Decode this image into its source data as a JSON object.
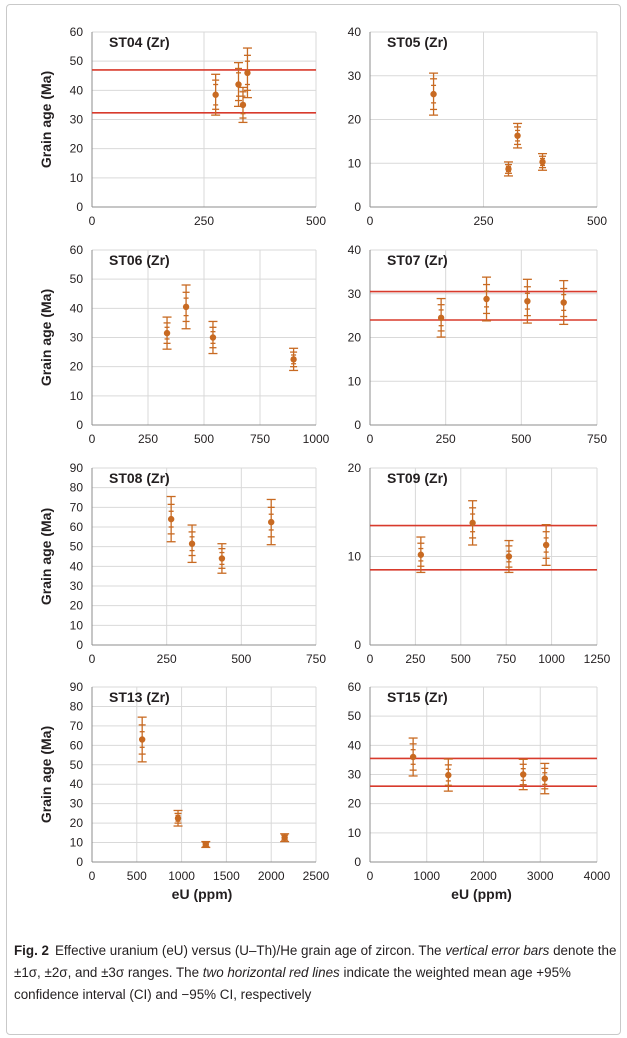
{
  "y_axis_label": "Grain age (Ma)",
  "x_axis_label": "eU (ppm)",
  "chart_data": [
    {
      "type": "scatter",
      "title": "ST04 (Zr)",
      "xlim": [
        0,
        500
      ],
      "xticks": [
        0,
        250,
        500
      ],
      "ylim": [
        0,
        60
      ],
      "yticks": [
        0,
        10,
        20,
        30,
        40,
        50,
        60
      ],
      "points": [
        {
          "x": 276,
          "y": 38.5,
          "err1": 3.5,
          "err2": 5,
          "err3": 7
        },
        {
          "x": 327,
          "y": 42,
          "err1": 4,
          "err2": 5.5,
          "err3": 7.5
        },
        {
          "x": 337,
          "y": 35,
          "err1": 3,
          "err2": 4.5,
          "err3": 6
        },
        {
          "x": 347,
          "y": 46,
          "err1": 4,
          "err2": 6,
          "err3": 8.5
        }
      ],
      "hlines": [
        47,
        32.3
      ]
    },
    {
      "type": "scatter",
      "title": "ST05 (Zr)",
      "xlim": [
        0,
        500
      ],
      "xticks": [
        0,
        250,
        500
      ],
      "ylim": [
        0,
        40
      ],
      "yticks": [
        0,
        10,
        20,
        30,
        40
      ],
      "points": [
        {
          "x": 140,
          "y": 25.8,
          "err1": 2,
          "err2": 3.5,
          "err3": 4.8
        },
        {
          "x": 305,
          "y": 8.7,
          "err1": 0.6,
          "err2": 1,
          "err3": 1.6
        },
        {
          "x": 325,
          "y": 16.3,
          "err1": 1.2,
          "err2": 2,
          "err3": 2.8
        },
        {
          "x": 380,
          "y": 10.3,
          "err1": 0.8,
          "err2": 1.3,
          "err3": 1.9
        }
      ],
      "hlines": []
    },
    {
      "type": "scatter",
      "title": "ST06 (Zr)",
      "xlim": [
        0,
        1000
      ],
      "xticks": [
        0,
        250,
        500,
        750,
        1000
      ],
      "ylim": [
        0,
        60
      ],
      "yticks": [
        0,
        10,
        20,
        30,
        40,
        50,
        60
      ],
      "points": [
        {
          "x": 335,
          "y": 31.5,
          "err1": 2,
          "err2": 3.5,
          "err3": 5.5
        },
        {
          "x": 420,
          "y": 40.5,
          "err1": 3,
          "err2": 5,
          "err3": 7.5
        },
        {
          "x": 540,
          "y": 30,
          "err1": 2,
          "err2": 3.5,
          "err3": 5.5
        },
        {
          "x": 900,
          "y": 22.5,
          "err1": 1.5,
          "err2": 2.5,
          "err3": 3.8
        }
      ],
      "hlines": []
    },
    {
      "type": "scatter",
      "title": "ST07 (Zr)",
      "xlim": [
        0,
        750
      ],
      "xticks": [
        0,
        250,
        500,
        750
      ],
      "ylim": [
        0,
        40
      ],
      "yticks": [
        0,
        10,
        20,
        30,
        40
      ],
      "points": [
        {
          "x": 235,
          "y": 24.5,
          "err1": 1.8,
          "err2": 3,
          "err3": 4.4
        },
        {
          "x": 385,
          "y": 28.8,
          "err1": 1.8,
          "err2": 3.3,
          "err3": 5
        },
        {
          "x": 520,
          "y": 28.3,
          "err1": 1.8,
          "err2": 3.3,
          "err3": 5
        },
        {
          "x": 640,
          "y": 28,
          "err1": 1.8,
          "err2": 3.2,
          "err3": 5
        }
      ],
      "hlines": [
        30.5,
        24
      ]
    },
    {
      "type": "scatter",
      "title": "ST08 (Zr)",
      "xlim": [
        0,
        750
      ],
      "xticks": [
        0,
        250,
        500,
        750
      ],
      "ylim": [
        0,
        90
      ],
      "yticks": [
        0,
        10,
        20,
        30,
        40,
        50,
        60,
        70,
        80,
        90
      ],
      "points": [
        {
          "x": 265,
          "y": 64,
          "err1": 4,
          "err2": 7.5,
          "err3": 11.5
        },
        {
          "x": 335,
          "y": 51.5,
          "err1": 3.5,
          "err2": 6,
          "err3": 9.5
        },
        {
          "x": 435,
          "y": 44,
          "err1": 3,
          "err2": 5,
          "err3": 7.5
        },
        {
          "x": 600,
          "y": 62.5,
          "err1": 4,
          "err2": 7.5,
          "err3": 11.5
        }
      ],
      "hlines": []
    },
    {
      "type": "scatter",
      "title": "ST09 (Zr)",
      "xlim": [
        0,
        1250
      ],
      "xticks": [
        0,
        250,
        500,
        750,
        1000,
        1250
      ],
      "ylim": [
        0,
        20
      ],
      "yticks": [
        0,
        10,
        20
      ],
      "points": [
        {
          "x": 280,
          "y": 10.2,
          "err1": 0.7,
          "err2": 1.3,
          "err3": 2
        },
        {
          "x": 565,
          "y": 13.8,
          "err1": 1,
          "err2": 1.7,
          "err3": 2.5
        },
        {
          "x": 765,
          "y": 10,
          "err1": 0.6,
          "err2": 1.2,
          "err3": 1.8
        },
        {
          "x": 970,
          "y": 11.3,
          "err1": 0.8,
          "err2": 1.5,
          "err3": 2.3
        }
      ],
      "hlines": [
        13.5,
        8.5
      ]
    },
    {
      "type": "scatter",
      "title": "ST13 (Zr)",
      "xlim": [
        0,
        2500
      ],
      "xticks": [
        0,
        500,
        1000,
        1500,
        2000,
        2500
      ],
      "ylim": [
        0,
        90
      ],
      "yticks": [
        0,
        10,
        20,
        30,
        40,
        50,
        60,
        70,
        80,
        90
      ],
      "points": [
        {
          "x": 560,
          "y": 63,
          "err1": 4,
          "err2": 7.5,
          "err3": 11.5
        },
        {
          "x": 960,
          "y": 22.5,
          "err1": 1.5,
          "err2": 2.5,
          "err3": 4
        },
        {
          "x": 1270,
          "y": 9,
          "err1": 0.5,
          "err2": 1,
          "err3": 1.5
        },
        {
          "x": 2150,
          "y": 12.5,
          "err1": 0.7,
          "err2": 1.3,
          "err3": 2
        }
      ],
      "hlines": []
    },
    {
      "type": "scatter",
      "title": "ST15 (Zr)",
      "xlim": [
        0,
        4000
      ],
      "xticks": [
        0,
        1000,
        2000,
        3000,
        4000
      ],
      "ylim": [
        0,
        60
      ],
      "yticks": [
        0,
        10,
        20,
        30,
        40,
        50,
        60
      ],
      "points": [
        {
          "x": 760,
          "y": 36,
          "err1": 2.5,
          "err2": 4.5,
          "err3": 6.5
        },
        {
          "x": 1380,
          "y": 29.8,
          "err1": 2,
          "err2": 3.5,
          "err3": 5.5
        },
        {
          "x": 2700,
          "y": 30,
          "err1": 2,
          "err2": 3.5,
          "err3": 5.2
        },
        {
          "x": 3080,
          "y": 28.6,
          "err1": 2,
          "err2": 3.5,
          "err3": 5.2
        }
      ],
      "hlines": [
        35.5,
        26
      ]
    }
  ],
  "colors": {
    "marker": "#c86a22",
    "hline": "#d83a2c",
    "grid": "#d9d9d9",
    "axis": "#8c8c8c"
  },
  "caption": {
    "label": "Fig. 2",
    "t1": "Effective uranium (eU) versus (U–Th)/He grain age of zircon. The ",
    "i1": "vertical error bars",
    "t2": " denote the ±1σ, ±2σ, and ±3σ ranges. The ",
    "i2": "two horizontal red lines",
    "t3": " indicate the weighted mean age +95% confidence interval (CI) and −95% CI, respectively"
  }
}
